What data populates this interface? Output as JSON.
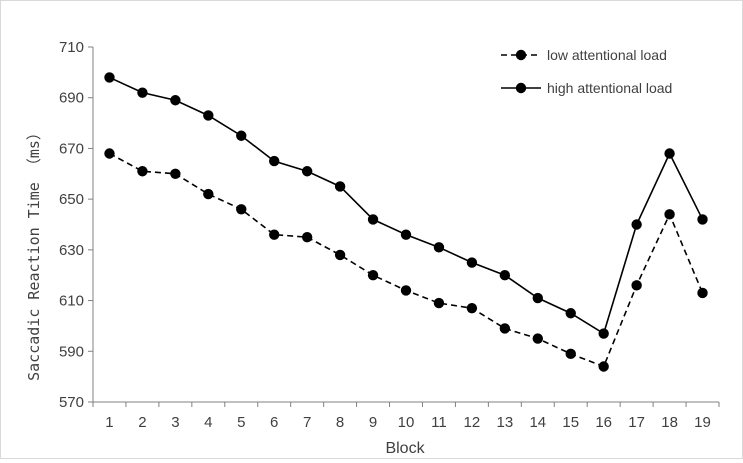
{
  "chart_data": {
    "type": "line",
    "xlabel": "Block",
    "ylabel": "Saccadic Reaction Time （ms）",
    "ylim": [
      570,
      710
    ],
    "yticks": [
      570,
      590,
      610,
      630,
      650,
      670,
      690,
      710
    ],
    "x": [
      "1",
      "2",
      "3",
      "4",
      "5",
      "6",
      "7",
      "8",
      "9",
      "10",
      "11",
      "12",
      "13",
      "14",
      "15",
      "16",
      "17",
      "18",
      "19"
    ],
    "grid": false,
    "legend_position": "top-right",
    "series": [
      {
        "name": "low attentional load",
        "style": "dashed",
        "color": "#000000",
        "values": [
          668,
          661,
          660,
          652,
          646,
          636,
          635,
          628,
          620,
          614,
          609,
          607,
          599,
          595,
          589,
          584,
          616,
          644,
          613
        ]
      },
      {
        "name": "high attentional load",
        "style": "solid",
        "color": "#000000",
        "values": [
          698,
          692,
          689,
          683,
          675,
          665,
          661,
          655,
          642,
          636,
          631,
          625,
          620,
          611,
          605,
          597,
          640,
          668,
          642
        ]
      }
    ]
  }
}
